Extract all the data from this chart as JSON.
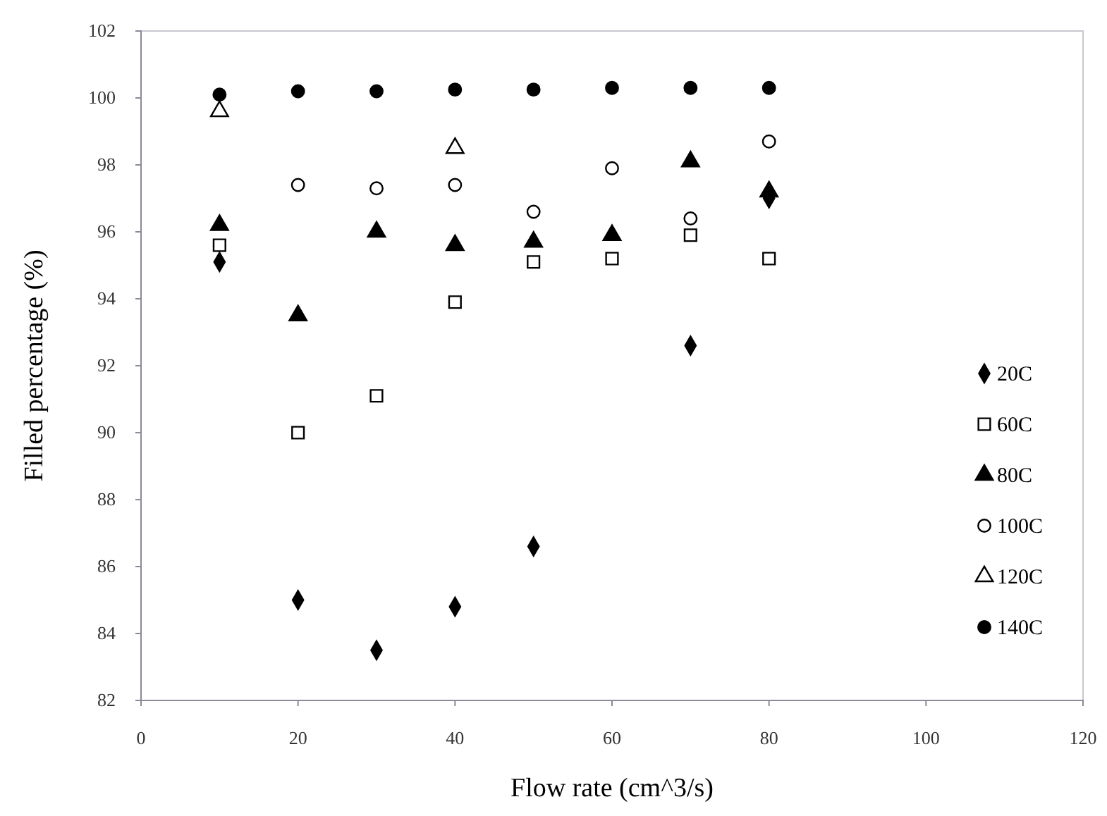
{
  "chart_data": {
    "type": "scatter",
    "xlabel": "Flow rate (cm^3/s)",
    "ylabel": "Filled percentage (%)",
    "x": [
      10,
      20,
      30,
      40,
      50,
      60,
      70,
      80
    ],
    "xlim": [
      0,
      120
    ],
    "xticks": [
      0,
      20,
      40,
      60,
      80,
      100,
      120
    ],
    "ylim": [
      82,
      102
    ],
    "yticks": [
      82,
      84,
      86,
      88,
      90,
      92,
      94,
      96,
      98,
      100,
      102
    ],
    "grid": false,
    "legend": "right",
    "series": [
      {
        "name": "20C",
        "color": "#000000",
        "marker": "diamond",
        "values": [
          95.1,
          85.0,
          83.5,
          84.8,
          86.6,
          null,
          92.6,
          97.0
        ]
      },
      {
        "name": "60C",
        "color": "#ffffff",
        "marker": "square",
        "values": [
          95.6,
          90.0,
          91.1,
          93.9,
          95.1,
          95.2,
          95.9,
          95.2
        ]
      },
      {
        "name": "80C",
        "color": "#000000",
        "marker": "triangle",
        "values": [
          96.2,
          93.5,
          96.0,
          95.6,
          95.7,
          95.9,
          98.1,
          97.2
        ]
      },
      {
        "name": "100C",
        "color": "#ffffff",
        "marker": "circle",
        "values": [
          null,
          97.4,
          97.3,
          97.4,
          96.6,
          97.9,
          96.4,
          98.7
        ]
      },
      {
        "name": "120C",
        "color": "#ffffff",
        "marker": "triangle",
        "values": [
          99.6,
          null,
          null,
          98.5,
          null,
          null,
          null,
          null
        ]
      },
      {
        "name": "140C",
        "color": "#000000",
        "marker": "circle",
        "values": [
          100.1,
          100.2,
          100.2,
          100.25,
          100.25,
          100.3,
          100.3,
          100.3
        ]
      }
    ]
  }
}
